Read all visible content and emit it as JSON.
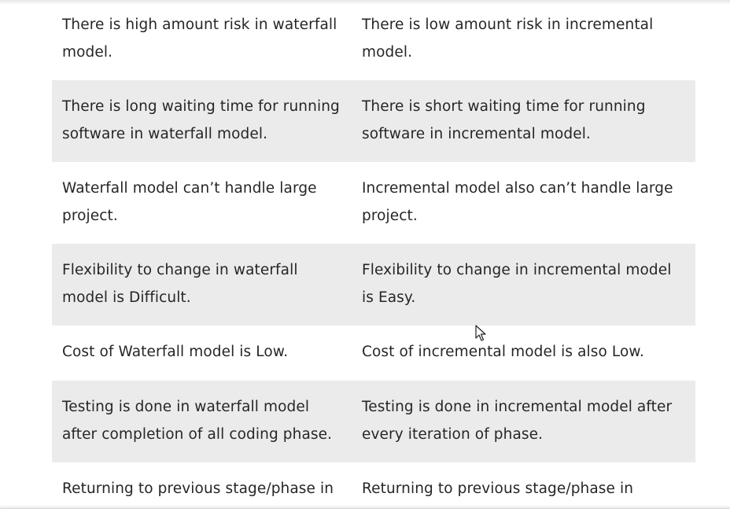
{
  "table": {
    "rows": [
      {
        "left": "There is high amount risk in waterfall model.",
        "right": "There is low amount risk in incremental model."
      },
      {
        "left": "There is long waiting time for running software in waterfall model.",
        "right": "There is short waiting time for running software in incremental model."
      },
      {
        "left": "Waterfall model can’t handle large project.",
        "right": "Incremental model also can’t handle large project."
      },
      {
        "left": "Flexibility to change in waterfall model is Difficult.",
        "right": "Flexibility to change in incremental model is Easy."
      },
      {
        "left": "Cost of Waterfall model is Low.",
        "right": "Cost of incremental model is also Low."
      },
      {
        "left": "Testing is done in waterfall model after completion of all coding phase.",
        "right": "Testing is done in incremental model after every iteration of phase."
      },
      {
        "left": "Returning to previous stage/phase in",
        "right": "Returning to previous stage/phase in"
      }
    ]
  },
  "colors": {
    "alt_row_bg": "#ebebeb",
    "text": "#262626"
  },
  "icons": {
    "cursor": "mouse-pointer-icon"
  }
}
